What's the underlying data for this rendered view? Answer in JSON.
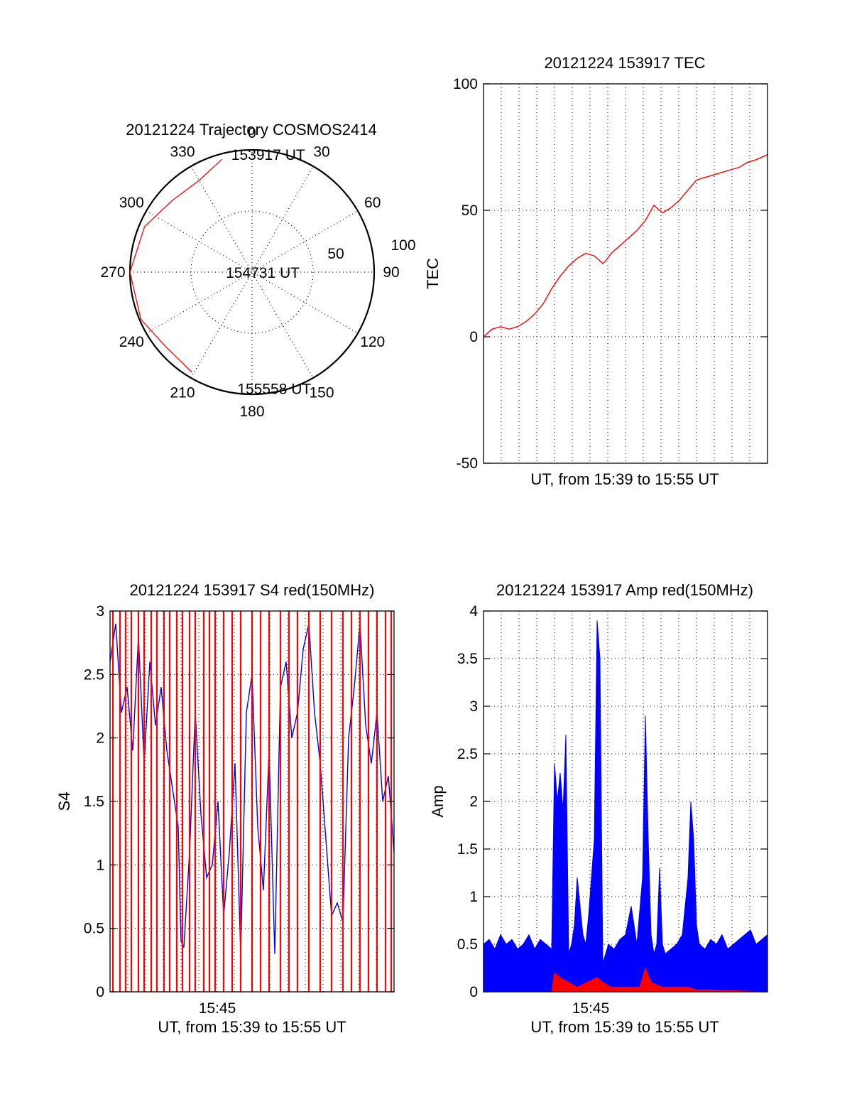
{
  "colors": {
    "primary_series": "#ff0000",
    "secondary_series": "#0000ff",
    "axes": "#000000",
    "background": "#ffffff"
  },
  "chart_data": [
    {
      "id": "trajectory",
      "type": "polar",
      "title": "20121224 Trajectory COSMOS2414",
      "azimuth_labels": [
        "0",
        "30",
        "60",
        "90",
        "120",
        "150",
        "180",
        "210",
        "240",
        "270",
        "300",
        "330"
      ],
      "radial_labels": [
        "50",
        "100"
      ],
      "grid": true,
      "series": [
        {
          "color": "#ff0000",
          "points": [
            {
              "azimuth_deg": 345,
              "zenith_deg": 86
            },
            {
              "azimuth_deg": 330,
              "zenith_deg": 78
            },
            {
              "azimuth_deg": 312,
              "zenith_deg": 79
            },
            {
              "azimuth_deg": 293,
              "zenith_deg": 86
            },
            {
              "azimuth_deg": 270,
              "zenith_deg": 90
            },
            {
              "azimuth_deg": 247,
              "zenith_deg": 89
            },
            {
              "azimuth_deg": 229,
              "zenith_deg": 84
            },
            {
              "azimuth_deg": 211,
              "zenith_deg": 86
            }
          ]
        }
      ],
      "annotations": [
        {
          "text": "153917 UT",
          "azimuth_deg": 2,
          "zenith_deg": 87
        },
        {
          "text": "154731 UT",
          "azimuth_deg": 270,
          "zenith_deg": 1
        },
        {
          "text": "155558 UT",
          "azimuth_deg": 175,
          "zenith_deg": 86
        }
      ]
    },
    {
      "id": "tec",
      "type": "line",
      "title": "20121224 153917 TEC",
      "xlabel": "UT, from 15:39 to 15:55 UT",
      "ylabel": "TEC",
      "xlim": [
        0,
        1
      ],
      "ylim": [
        -50,
        100
      ],
      "yticks": [
        "-50",
        "0",
        "50",
        "100"
      ],
      "xtick_labels": [],
      "grid": true,
      "series": [
        {
          "color": "#ff0000",
          "x": [
            0,
            0.03,
            0.06,
            0.09,
            0.12,
            0.15,
            0.18,
            0.21,
            0.24,
            0.27,
            0.3,
            0.33,
            0.36,
            0.39,
            0.42,
            0.43,
            0.45,
            0.48,
            0.51,
            0.54,
            0.57,
            0.6,
            0.63,
            0.66,
            0.69,
            0.72,
            0.75,
            0.78,
            0.81,
            0.84,
            0.87,
            0.9,
            0.93,
            0.96,
            1.0
          ],
          "y": [
            0,
            3,
            4,
            3,
            4,
            6,
            9,
            13,
            19,
            24,
            28,
            31,
            33,
            32,
            29,
            30,
            33,
            36,
            39,
            42,
            46,
            52,
            49,
            51,
            54,
            58,
            62,
            63,
            64,
            65,
            66,
            67,
            69,
            70,
            72
          ]
        }
      ]
    },
    {
      "id": "s4",
      "type": "line",
      "title": "20121224 153917 S4 red(150MHz)",
      "xlabel": "UT, from 15:39 to 15:55 UT",
      "ylabel": "S4",
      "xlim": [
        0,
        1
      ],
      "ylim": [
        0,
        3
      ],
      "yticks": [
        "0",
        "0.5",
        "1",
        "1.5",
        "2",
        "2.5",
        "3"
      ],
      "xtick_labels": [
        "15:45"
      ],
      "grid": true,
      "series": [
        {
          "color": "#0000ff",
          "x": [
            0,
            0.02,
            0.04,
            0.06,
            0.08,
            0.1,
            0.12,
            0.14,
            0.16,
            0.18,
            0.2,
            0.22,
            0.24,
            0.25,
            0.26,
            0.28,
            0.3,
            0.32,
            0.34,
            0.36,
            0.38,
            0.4,
            0.42,
            0.44,
            0.46,
            0.48,
            0.5,
            0.52,
            0.54,
            0.56,
            0.58,
            0.6,
            0.62,
            0.64,
            0.66,
            0.68,
            0.7,
            0.72,
            0.74,
            0.76,
            0.78,
            0.8,
            0.82,
            0.84,
            0.86,
            0.88,
            0.9,
            0.92,
            0.94,
            0.96,
            0.98,
            1.0
          ],
          "y": [
            2.6,
            2.9,
            2.2,
            2.4,
            1.9,
            2.8,
            1.8,
            2.6,
            2.1,
            2.4,
            1.9,
            1.6,
            1.3,
            0.4,
            0.35,
            1.1,
            2.2,
            1.4,
            0.9,
            1.0,
            1.5,
            0.6,
            1.1,
            1.8,
            0.3,
            2.2,
            2.5,
            1.3,
            0.8,
            1.9,
            0.3,
            2.4,
            2.6,
            2.0,
            2.2,
            2.7,
            2.9,
            2.2,
            1.8,
            1.2,
            0.6,
            0.7,
            0.55,
            2.0,
            2.4,
            2.9,
            2.1,
            1.8,
            2.2,
            1.5,
            1.7,
            1.1
          ]
        },
        {
          "color": "#ff0000",
          "x": [
            0.01,
            0.035,
            0.055,
            0.075,
            0.1,
            0.12,
            0.145,
            0.165,
            0.19,
            0.21,
            0.235,
            0.255,
            0.28,
            0.3,
            0.33,
            0.35,
            0.37,
            0.4,
            0.43,
            0.46,
            0.5,
            0.53,
            0.56,
            0.6,
            0.63,
            0.66,
            0.7,
            0.74,
            0.78,
            0.82,
            0.85,
            0.88,
            0.91,
            0.94,
            0.97,
            0.99
          ],
          "y": [
            3.0,
            3.0,
            3.0,
            3.0,
            3.0,
            3.0,
            3.0,
            3.0,
            3.0,
            3.0,
            3.0,
            3.0,
            3.0,
            3.0,
            3.0,
            3.0,
            3.0,
            3.0,
            3.0,
            3.0,
            3.0,
            3.0,
            3.0,
            3.0,
            3.0,
            3.0,
            3.0,
            3.0,
            3.0,
            3.0,
            3.0,
            3.0,
            3.0,
            3.0,
            3.0,
            3.0
          ]
        }
      ]
    },
    {
      "id": "amp",
      "type": "line",
      "title": "20121224 153917 Amp red(150MHz)",
      "xlabel": "UT, from 15:39 to 15:55 UT",
      "ylabel": "Amp",
      "xlim": [
        0,
        1
      ],
      "ylim": [
        0,
        4
      ],
      "yticks": [
        "0",
        "0.5",
        "1",
        "1.5",
        "2",
        "2.5",
        "3",
        "3.5",
        "4"
      ],
      "xtick_labels": [
        "15:45"
      ],
      "grid": true,
      "series": [
        {
          "color": "#0000ff",
          "x": [
            0,
            0.02,
            0.04,
            0.06,
            0.08,
            0.1,
            0.12,
            0.14,
            0.16,
            0.18,
            0.2,
            0.22,
            0.24,
            0.25,
            0.26,
            0.27,
            0.28,
            0.29,
            0.3,
            0.31,
            0.32,
            0.33,
            0.34,
            0.35,
            0.36,
            0.37,
            0.38,
            0.39,
            0.4,
            0.41,
            0.42,
            0.43,
            0.44,
            0.46,
            0.48,
            0.5,
            0.52,
            0.54,
            0.56,
            0.57,
            0.58,
            0.59,
            0.6,
            0.61,
            0.62,
            0.63,
            0.64,
            0.66,
            0.68,
            0.7,
            0.72,
            0.73,
            0.74,
            0.75,
            0.76,
            0.78,
            0.8,
            0.82,
            0.84,
            0.86,
            0.88,
            0.9,
            0.92,
            0.94,
            0.96,
            0.98,
            1.0
          ],
          "y": [
            0.5,
            0.55,
            0.45,
            0.6,
            0.5,
            0.55,
            0.45,
            0.5,
            0.6,
            0.45,
            0.55,
            0.5,
            0.45,
            2.4,
            2.0,
            2.3,
            1.9,
            2.7,
            0.4,
            0.5,
            0.7,
            1.2,
            0.9,
            0.6,
            0.5,
            0.8,
            1.2,
            1.6,
            3.9,
            3.5,
            0.3,
            0.4,
            0.5,
            0.45,
            0.55,
            0.6,
            0.9,
            0.5,
            1.2,
            2.9,
            1.6,
            0.6,
            0.4,
            0.5,
            1.3,
            0.5,
            0.4,
            0.45,
            0.5,
            0.6,
            1.2,
            2.0,
            1.6,
            0.7,
            0.5,
            0.45,
            0.55,
            0.5,
            0.6,
            0.45,
            0.5,
            0.55,
            0.6,
            0.65,
            0.5,
            0.55,
            0.6
          ]
        },
        {
          "color": "#ff0000",
          "x": [
            0,
            0.24,
            0.25,
            0.27,
            0.3,
            0.33,
            0.4,
            0.42,
            0.45,
            0.55,
            0.57,
            0.59,
            0.63,
            0.72,
            0.75,
            0.8,
            1.0
          ],
          "y": [
            0,
            0,
            0.2,
            0.15,
            0.1,
            0.05,
            0.15,
            0.1,
            0.05,
            0.05,
            0.25,
            0.1,
            0.05,
            0.05,
            0.02,
            0.02,
            0
          ]
        }
      ]
    }
  ]
}
